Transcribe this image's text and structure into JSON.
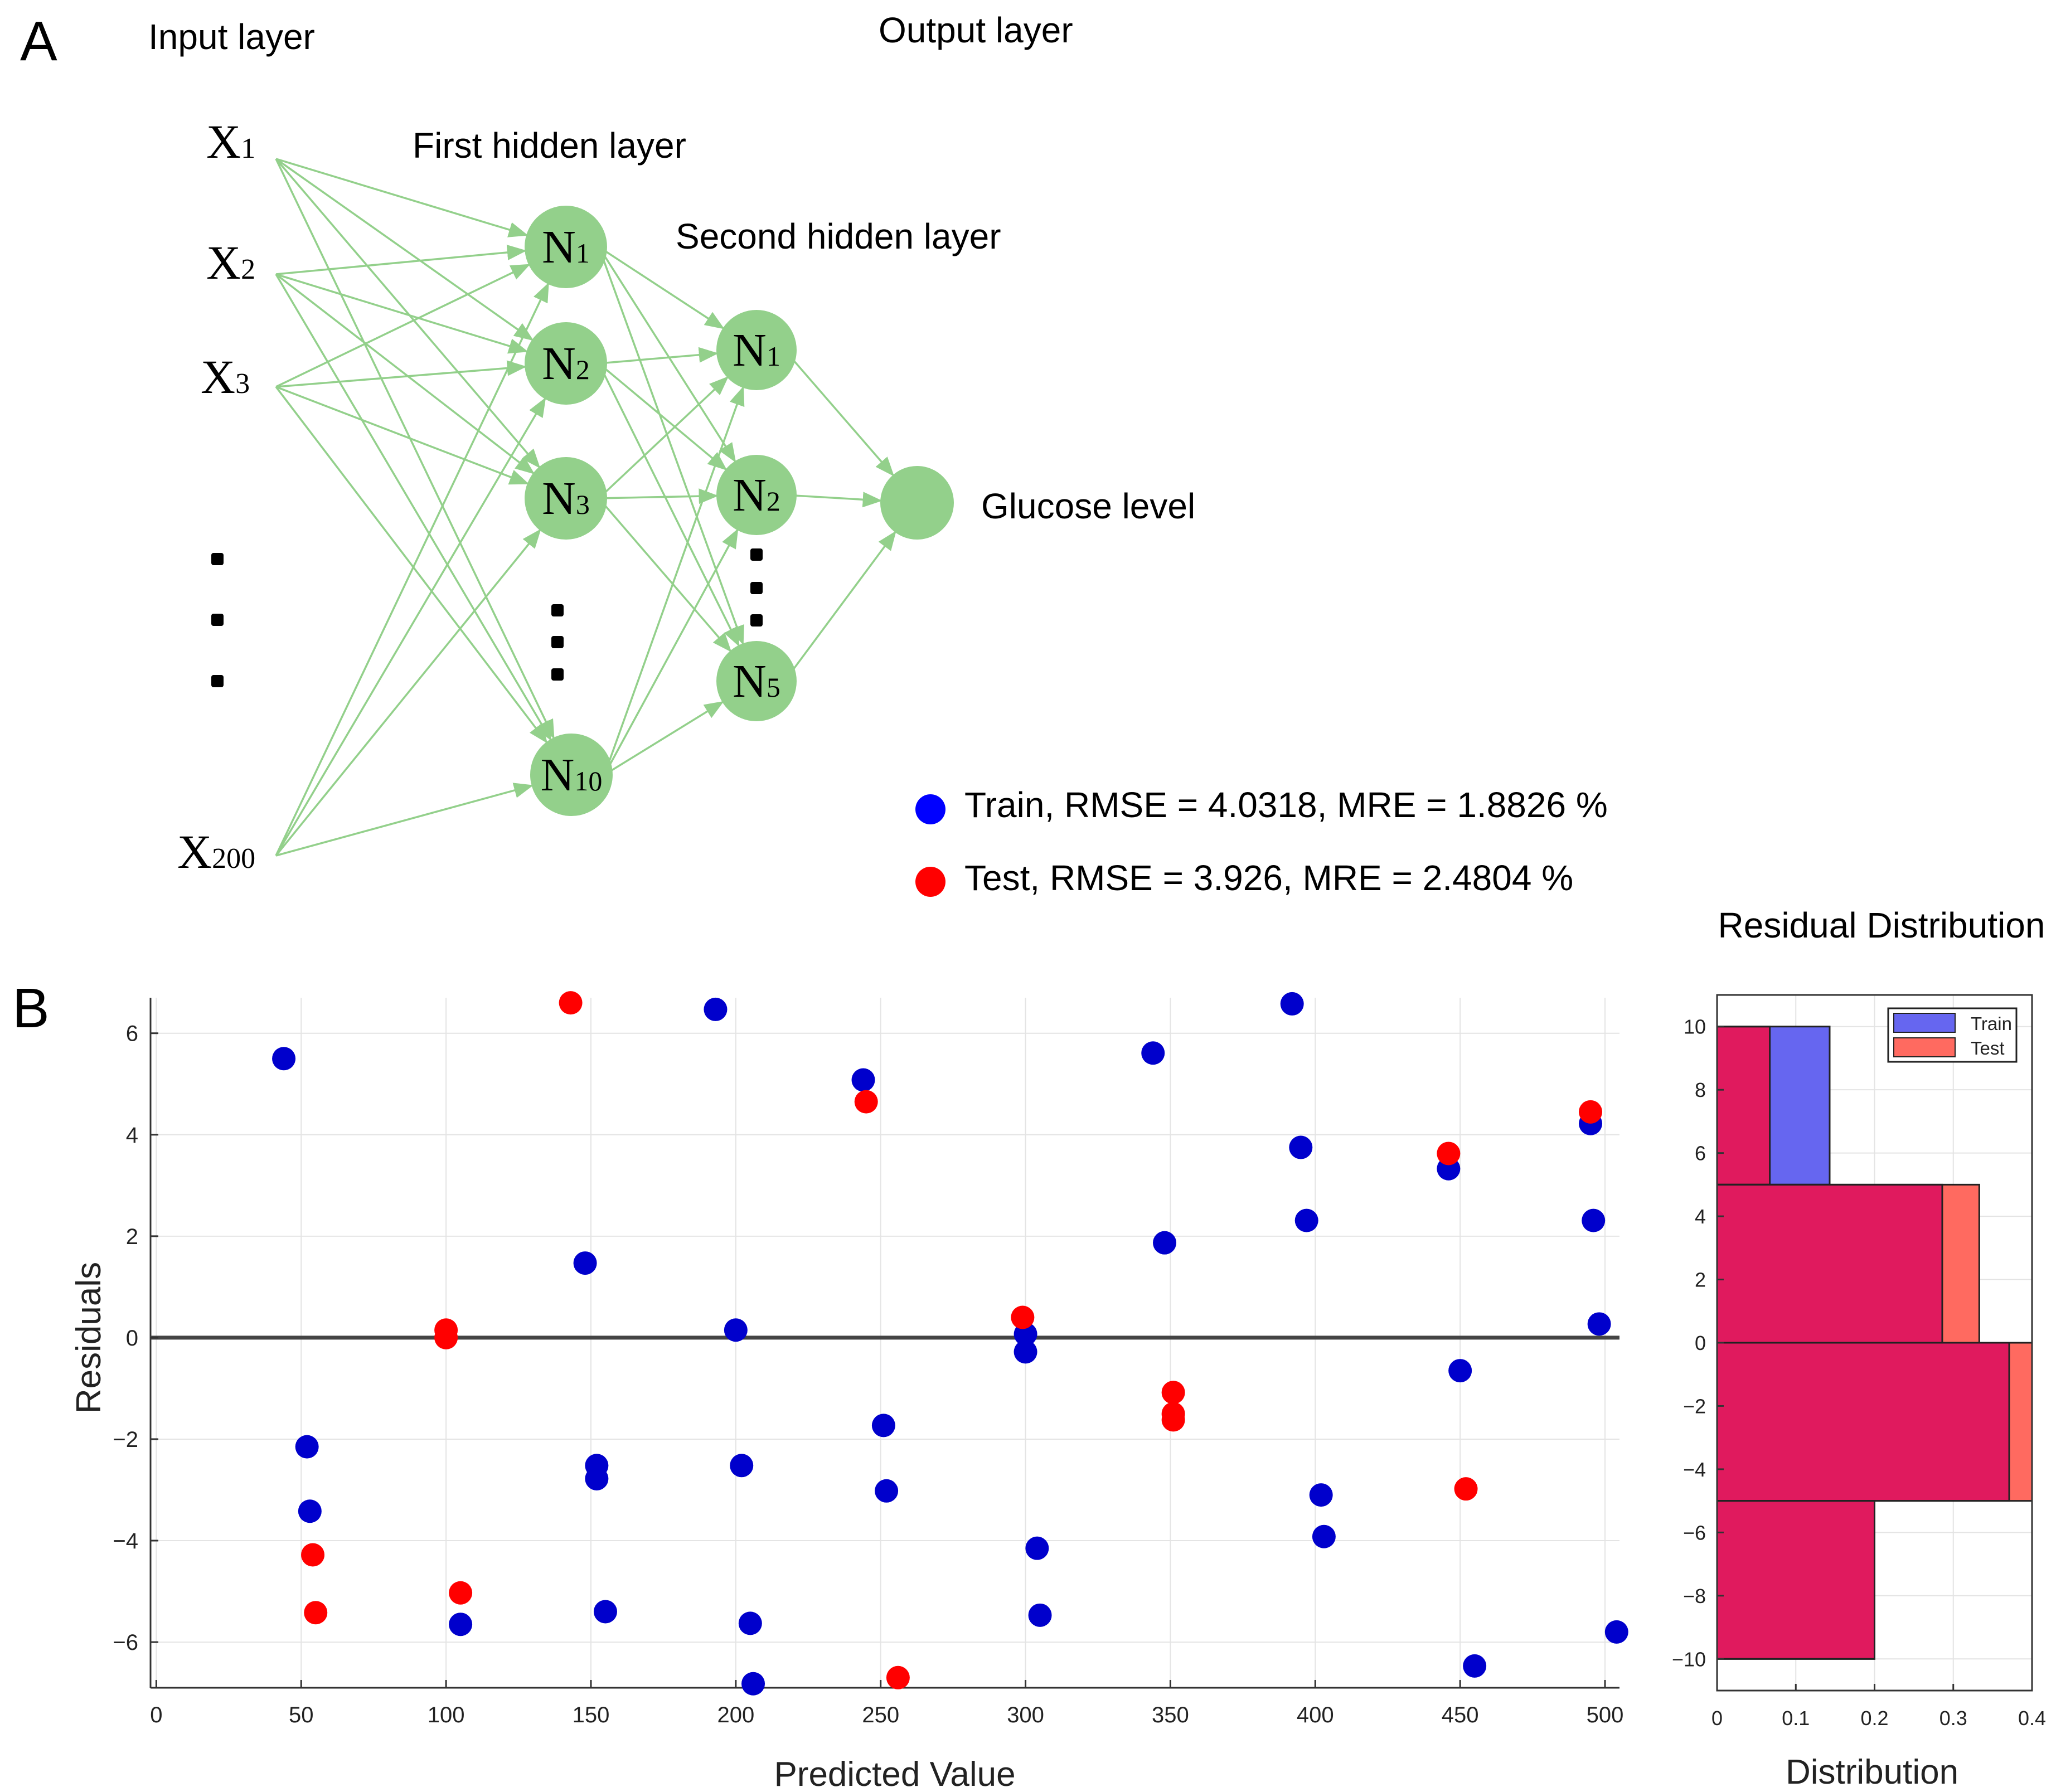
{
  "panel_a": {
    "label": "A",
    "layer_labels": {
      "input": "Input layer",
      "first_hidden": "First hidden layer",
      "second_hidden": "Second hidden layer",
      "output": "Output layer",
      "output_name": "Glucose level"
    },
    "inputs": [
      {
        "base": "X",
        "sub": "1"
      },
      {
        "base": "X",
        "sub": "2"
      },
      {
        "base": "X",
        "sub": "3"
      },
      {
        "base": "X",
        "sub": "200"
      }
    ],
    "hidden1": [
      {
        "base": "N",
        "sub": "1"
      },
      {
        "base": "N",
        "sub": "2"
      },
      {
        "base": "N",
        "sub": "3"
      },
      {
        "base": "N",
        "sub": "10"
      }
    ],
    "hidden2": [
      {
        "base": "N",
        "sub": "1"
      },
      {
        "base": "N",
        "sub": "2"
      },
      {
        "base": "N",
        "sub": "5"
      }
    ],
    "colors": {
      "node": "#93d08b",
      "edge": "#93d08b",
      "dots": "#000000"
    }
  },
  "panel_b": {
    "label": "B",
    "distribution_title": "Residual Distribution"
  },
  "chart_data": [
    {
      "type": "scatter",
      "title": "",
      "xlabel": "Predicted Value",
      "ylabel": "Residuals",
      "xlim": [
        -2,
        505
      ],
      "ylim": [
        -6.9,
        6.7
      ],
      "xticks": [
        0,
        50,
        100,
        150,
        200,
        250,
        300,
        350,
        400,
        450,
        500
      ],
      "yticks": [
        -6,
        -4,
        -2,
        0,
        2,
        4,
        6
      ],
      "grid": true,
      "reference_line_y": 0,
      "legend_position": "top-right",
      "series": [
        {
          "name": "Train, RMSE = 4.0318, MRE = 1.8826 %",
          "color": "#0000cc",
          "points": [
            [
              44,
              5.5
            ],
            [
              52,
              -2.15
            ],
            [
              53,
              -3.42
            ],
            [
              105,
              -5.65
            ],
            [
              148,
              1.47
            ],
            [
              152,
              -2.52
            ],
            [
              152,
              -2.78
            ],
            [
              155,
              -5.4
            ],
            [
              193,
              6.47
            ],
            [
              200,
              0.15
            ],
            [
              202,
              -2.52
            ],
            [
              205,
              -5.63
            ],
            [
              206,
              -6.82
            ],
            [
              244,
              5.08
            ],
            [
              251,
              -1.73
            ],
            [
              252,
              -3.02
            ],
            [
              300,
              0.07
            ],
            [
              300,
              -0.28
            ],
            [
              304,
              -4.15
            ],
            [
              305,
              -5.47
            ],
            [
              344,
              5.61
            ],
            [
              348,
              1.87
            ],
            [
              392,
              6.58
            ],
            [
              395,
              3.75
            ],
            [
              397,
              2.31
            ],
            [
              402,
              -3.1
            ],
            [
              403,
              -3.92
            ],
            [
              446,
              3.33
            ],
            [
              450,
              -0.65
            ],
            [
              455,
              -6.47
            ],
            [
              495,
              4.22
            ],
            [
              496,
              2.31
            ],
            [
              498,
              0.27
            ],
            [
              504,
              -5.8
            ]
          ]
        },
        {
          "name": "Test, RMSE = 3.926, MRE = 2.4804 %",
          "color": "#ff0000",
          "points": [
            [
              54,
              -4.28
            ],
            [
              55,
              -5.42
            ],
            [
              100,
              0.15
            ],
            [
              100,
              0.0
            ],
            [
              105,
              -5.03
            ],
            [
              143,
              6.6
            ],
            [
              245,
              4.65
            ],
            [
              256,
              -6.7
            ],
            [
              299,
              0.4
            ],
            [
              351,
              -1.08
            ],
            [
              351,
              -1.5
            ],
            [
              351,
              -1.62
            ],
            [
              446,
              3.63
            ],
            [
              452,
              -2.98
            ],
            [
              495,
              4.45
            ]
          ]
        }
      ]
    },
    {
      "type": "bar",
      "orientation": "horizontal",
      "title": "Residual Distribution",
      "xlabel": "Distribution",
      "ylabel": "",
      "xlim": [
        0,
        0.4
      ],
      "ylim": [
        -11,
        11
      ],
      "xticks": [
        "0",
        "0.1",
        "0.2",
        "0.3",
        "0.4"
      ],
      "yticks": [
        -10,
        -8,
        -6,
        -4,
        -2,
        0,
        2,
        4,
        6,
        8,
        10
      ],
      "grid": true,
      "legend_position": "top-right",
      "bins": [
        [
          5,
          10
        ],
        [
          0,
          5
        ],
        [
          -5,
          0
        ],
        [
          -10,
          -5
        ]
      ],
      "series": [
        {
          "name": "Train",
          "color": "#6666f0",
          "values": [
            0.143,
            0.286,
            0.371,
            0.2
          ]
        },
        {
          "name": "Test",
          "color": "#ff6a60",
          "values": [
            0.067,
            0.333,
            0.4,
            0.2
          ]
        }
      ],
      "overlap_color": "#e01a5e"
    }
  ]
}
